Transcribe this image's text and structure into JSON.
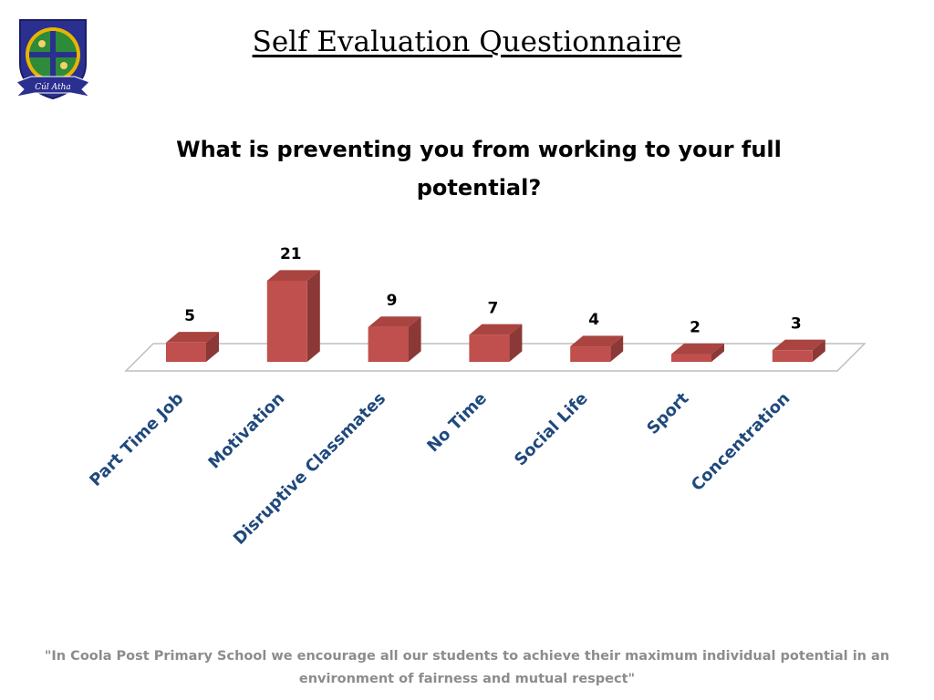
{
  "header": {
    "title": "Self Evaluation Questionnaire",
    "logo_text": "Cúl Atha"
  },
  "chart_data": {
    "type": "bar",
    "title": "What is preventing you from working to your full potential?",
    "categories": [
      "Part Time Job",
      "Motivation",
      "Disruptive Classmates",
      "No Time",
      "Social Life",
      "Sport",
      "Concentration"
    ],
    "values": [
      5,
      21,
      9,
      7,
      4,
      2,
      3
    ],
    "data_labels": true,
    "grid": false,
    "legend": "none",
    "style": "3d-column",
    "colors": {
      "bar": "#c0504d",
      "bar_side": "#8c3836",
      "bar_top": "#a94441",
      "tick_label": "#1f497d",
      "floor": "#bfbfbf"
    }
  },
  "footer": {
    "quote": "\"In Coola Post Primary School we encourage all our students to achieve their maximum individual potential in an environment of fairness and mutual respect\""
  }
}
